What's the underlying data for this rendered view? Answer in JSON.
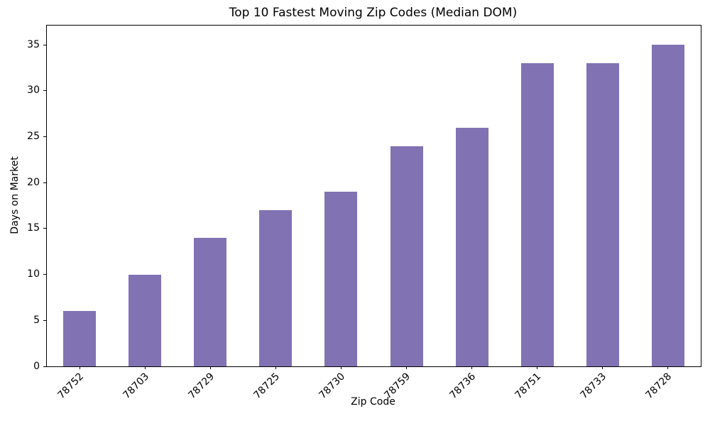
{
  "chart_data": {
    "type": "bar",
    "title": "Top 10 Fastest Moving Zip Codes (Median DOM)",
    "xlabel": "Zip Code",
    "ylabel": "Days on Market",
    "categories": [
      "78752",
      "78703",
      "78729",
      "78725",
      "78730",
      "78759",
      "78736",
      "78751",
      "78733",
      "78728"
    ],
    "values": [
      6,
      10,
      14,
      17,
      19,
      24,
      26,
      33,
      33,
      35
    ],
    "ylim": [
      0,
      37.1
    ],
    "yticks": [
      0,
      5,
      10,
      15,
      20,
      25,
      30,
      35
    ],
    "x_tick_rotation": 45,
    "grid": false,
    "legend": "none",
    "bar_color": "#8172b3",
    "axis_color": "#000000",
    "background_color": "#ffffff"
  }
}
